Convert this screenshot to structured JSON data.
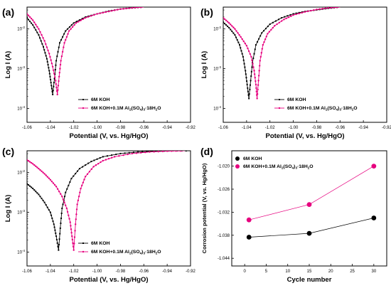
{
  "colors": {
    "koh": "#000000",
    "al": "#e6007e"
  },
  "chart_data": [
    {
      "panel": "(a)",
      "type": "line",
      "xlabel": "Potential (V, vs. Hg/HgO)",
      "ylabel": "Log I (A)",
      "xlim": [
        -1.06,
        -0.92
      ],
      "ylog": true,
      "ylim_log10": [
        -4.35,
        -1.45
      ],
      "x_ticks": [
        "-1.06",
        "-1.04",
        "-1.02",
        "-1.00",
        "-0.98",
        "-0.96",
        "-0.94",
        "-0.92"
      ],
      "y_ticks": [
        {
          "v": -2,
          "label": "10",
          "exp": "-2"
        },
        {
          "v": -3,
          "label": "10",
          "exp": "-3"
        },
        {
          "v": -4,
          "label": "10",
          "exp": "-4"
        }
      ],
      "legend_position": "bottom-right",
      "series": [
        {
          "name": "6M KOH",
          "color_key": "koh",
          "marker": "square",
          "corr_potential": -1.038,
          "log_i_corr": -3.65,
          "curve": [
            [
              -1.06,
              -1.72
            ],
            [
              -1.055,
              -1.9
            ],
            [
              -1.05,
              -2.15
            ],
            [
              -1.046,
              -2.45
            ],
            [
              -1.043,
              -2.75
            ],
            [
              -1.041,
              -3.05
            ],
            [
              -1.0395,
              -3.35
            ],
            [
              -1.038,
              -3.65
            ],
            [
              -1.0365,
              -3.25
            ],
            [
              -1.035,
              -2.8
            ],
            [
              -1.032,
              -2.35
            ],
            [
              -1.027,
              -2.05
            ],
            [
              -1.02,
              -1.85
            ],
            [
              -1.01,
              -1.7
            ],
            [
              -1.0,
              -1.62
            ],
            [
              -0.99,
              -1.55
            ],
            [
              -0.98,
              -1.5
            ],
            [
              -0.97,
              -1.47
            ],
            [
              -0.96,
              -1.45
            ]
          ]
        },
        {
          "name": "6M KOH+0.1M Al",
          "name_sub": "2",
          "name_mid": "(SO",
          "name_sub2": "4",
          "name_mid2": ")",
          "name_sub3": "3",
          "name_end": "·18H",
          "name_sub4": "2",
          "name_tail": "O",
          "color_key": "al",
          "marker": "circle",
          "corr_potential": -1.034,
          "log_i_corr": -3.65,
          "curve": [
            [
              -1.06,
              -1.62
            ],
            [
              -1.055,
              -1.78
            ],
            [
              -1.05,
              -2.0
            ],
            [
              -1.045,
              -2.3
            ],
            [
              -1.041,
              -2.62
            ],
            [
              -1.038,
              -2.95
            ],
            [
              -1.0355,
              -3.3
            ],
            [
              -1.034,
              -3.65
            ],
            [
              -1.0325,
              -3.2
            ],
            [
              -1.031,
              -2.8
            ],
            [
              -1.028,
              -2.35
            ],
            [
              -1.024,
              -2.05
            ],
            [
              -1.018,
              -1.85
            ],
            [
              -1.01,
              -1.72
            ],
            [
              -1.0,
              -1.62
            ],
            [
              -0.99,
              -1.56
            ],
            [
              -0.98,
              -1.5
            ],
            [
              -0.97,
              -1.47
            ],
            [
              -0.96,
              -1.45
            ]
          ]
        }
      ]
    },
    {
      "panel": "(b)",
      "type": "line",
      "xlabel": "Potential (V, vs. Hg/HgO)",
      "ylabel": "Log I (A)",
      "xlim": [
        -1.06,
        -0.92
      ],
      "ylog": true,
      "ylim_log10": [
        -4.35,
        -1.45
      ],
      "x_ticks": [
        "-1.06",
        "-1.04",
        "-1.02",
        "-1.00",
        "-0.98",
        "-0.96",
        "-0.94",
        "-0.92"
      ],
      "y_ticks": [
        {
          "v": -2,
          "label": "10",
          "exp": "-2"
        },
        {
          "v": -3,
          "label": "10",
          "exp": "-3"
        },
        {
          "v": -4,
          "label": "10",
          "exp": "-4"
        }
      ],
      "legend_position": "bottom-right",
      "series": [
        {
          "name": "6M KOH",
          "color_key": "koh",
          "marker": "square",
          "corr_potential": -1.038,
          "log_i_corr": -3.75,
          "curve": [
            [
              -1.06,
              -1.83
            ],
            [
              -1.055,
              -1.97
            ],
            [
              -1.05,
              -2.15
            ],
            [
              -1.046,
              -2.4
            ],
            [
              -1.043,
              -2.7
            ],
            [
              -1.041,
              -3.05
            ],
            [
              -1.0395,
              -3.4
            ],
            [
              -1.038,
              -3.75
            ],
            [
              -1.0365,
              -3.3
            ],
            [
              -1.035,
              -2.85
            ],
            [
              -1.032,
              -2.4
            ],
            [
              -1.027,
              -2.1
            ],
            [
              -1.02,
              -1.88
            ],
            [
              -1.01,
              -1.72
            ],
            [
              -1.0,
              -1.62
            ],
            [
              -0.99,
              -1.56
            ],
            [
              -0.98,
              -1.52
            ],
            [
              -0.97,
              -1.48
            ],
            [
              -0.96,
              -1.45
            ]
          ]
        },
        {
          "name": "6M KOH+0.1M Al",
          "name_sub": "2",
          "name_mid": "(SO",
          "name_sub2": "4",
          "name_mid2": ")",
          "name_sub3": "3",
          "name_end": "·18H",
          "name_sub4": "2",
          "name_tail": "O",
          "color_key": "al",
          "marker": "circle",
          "corr_potential": -1.031,
          "log_i_corr": -3.75,
          "curve": [
            [
              -1.06,
              -1.72
            ],
            [
              -1.055,
              -1.85
            ],
            [
              -1.05,
              -2.0
            ],
            [
              -1.045,
              -2.2
            ],
            [
              -1.04,
              -2.42
            ],
            [
              -1.036,
              -2.7
            ],
            [
              -1.0335,
              -3.05
            ],
            [
              -1.032,
              -3.4
            ],
            [
              -1.031,
              -3.75
            ],
            [
              -1.0298,
              -3.3
            ],
            [
              -1.0285,
              -2.8
            ],
            [
              -1.026,
              -2.4
            ],
            [
              -1.022,
              -2.12
            ],
            [
              -1.016,
              -1.92
            ],
            [
              -1.008,
              -1.76
            ],
            [
              -1.0,
              -1.65
            ],
            [
              -0.99,
              -1.57
            ],
            [
              -0.98,
              -1.51
            ],
            [
              -0.97,
              -1.47
            ],
            [
              -0.96,
              -1.45
            ]
          ]
        }
      ]
    },
    {
      "panel": "(c)",
      "type": "line",
      "xlabel": "Potential (V, vs. Hg/HgO)",
      "ylabel": "Log I (A)",
      "xlim": [
        -1.06,
        -0.92
      ],
      "ylog": true,
      "ylim_log10": [
        -4.35,
        -1.45
      ],
      "x_ticks": [
        "-1.06",
        "-1.04",
        "-1.02",
        "-1.00",
        "-0.98",
        "-0.96",
        "-0.94",
        "-0.92"
      ],
      "y_ticks": [
        {
          "v": -2,
          "label": "10",
          "exp": "-2"
        },
        {
          "v": -3,
          "label": "10",
          "exp": "-3"
        },
        {
          "v": -4,
          "label": "10",
          "exp": "-4"
        }
      ],
      "legend_position": "bottom-right",
      "series": [
        {
          "name": "6M KOH",
          "color_key": "koh",
          "marker": "square",
          "corr_potential": -1.033,
          "log_i_corr": -3.95,
          "curve": [
            [
              -1.06,
              -2.28
            ],
            [
              -1.055,
              -2.4
            ],
            [
              -1.05,
              -2.55
            ],
            [
              -1.045,
              -2.75
            ],
            [
              -1.04,
              -3.0
            ],
            [
              -1.037,
              -3.3
            ],
            [
              -1.035,
              -3.6
            ],
            [
              -1.033,
              -3.95
            ],
            [
              -1.0315,
              -3.4
            ],
            [
              -1.03,
              -2.9
            ],
            [
              -1.027,
              -2.5
            ],
            [
              -1.022,
              -2.15
            ],
            [
              -1.015,
              -1.9
            ],
            [
              -1.005,
              -1.72
            ],
            [
              -0.995,
              -1.6
            ],
            [
              -0.98,
              -1.52
            ],
            [
              -0.965,
              -1.48
            ],
            [
              -0.95,
              -1.46
            ],
            [
              -0.935,
              -1.45
            ],
            [
              -0.92,
              -1.45
            ]
          ]
        },
        {
          "name": "6M KOH+0.1M Al",
          "name_sub": "2",
          "name_mid": "(SO",
          "name_sub2": "4",
          "name_mid2": ")",
          "name_sub3": "3",
          "name_end": "·18H",
          "name_sub4": "2",
          "name_tail": "O",
          "color_key": "al",
          "marker": "circle",
          "corr_potential": -1.02,
          "log_i_corr": -3.95,
          "curve": [
            [
              -1.06,
              -1.68
            ],
            [
              -1.055,
              -1.78
            ],
            [
              -1.05,
              -1.9
            ],
            [
              -1.045,
              -2.03
            ],
            [
              -1.04,
              -2.18
            ],
            [
              -1.035,
              -2.35
            ],
            [
              -1.03,
              -2.6
            ],
            [
              -1.026,
              -2.9
            ],
            [
              -1.023,
              -3.25
            ],
            [
              -1.0215,
              -3.6
            ],
            [
              -1.02,
              -3.95
            ],
            [
              -1.0185,
              -3.3
            ],
            [
              -1.017,
              -2.8
            ],
            [
              -1.014,
              -2.4
            ],
            [
              -1.01,
              -2.1
            ],
            [
              -1.003,
              -1.85
            ],
            [
              -0.995,
              -1.7
            ],
            [
              -0.985,
              -1.6
            ],
            [
              -0.97,
              -1.52
            ],
            [
              -0.955,
              -1.48
            ],
            [
              -0.94,
              -1.46
            ],
            [
              -0.925,
              -1.45
            ]
          ]
        }
      ]
    },
    {
      "panel": "(d)",
      "type": "line",
      "xlabel": "Cycle number",
      "ylabel": "Corrosion potential (V, vs. Hg/HgO)",
      "xlim": [
        -3,
        33
      ],
      "ylim": [
        -1.046,
        -1.016
      ],
      "x_ticks": [
        "0",
        "5",
        "10",
        "15",
        "20",
        "25",
        "30"
      ],
      "x_tick_values": [
        0,
        5,
        10,
        15,
        20,
        25,
        30
      ],
      "y_ticks": [
        "-1.044",
        "-1.038",
        "-1.032",
        "-1.026",
        "-1.020"
      ],
      "y_tick_values": [
        -1.044,
        -1.038,
        -1.032,
        -1.026,
        -1.02
      ],
      "legend_position": "top-left",
      "series": [
        {
          "name": "6M KOH",
          "color_key": "koh",
          "marker": "circle",
          "x": [
            1,
            15,
            30
          ],
          "y": [
            -1.0385,
            -1.0375,
            -1.0335
          ]
        },
        {
          "name": "6M KOH+0.1M Al",
          "name_sub": "2",
          "name_mid": "(SO",
          "name_sub2": "4",
          "name_mid2": ")",
          "name_sub3": "3",
          "name_end": "·18H",
          "name_sub4": "2",
          "name_tail": "O",
          "color_key": "al",
          "marker": "circle",
          "x": [
            1,
            15,
            30
          ],
          "y": [
            -1.034,
            -1.03,
            -1.02
          ]
        }
      ]
    }
  ]
}
